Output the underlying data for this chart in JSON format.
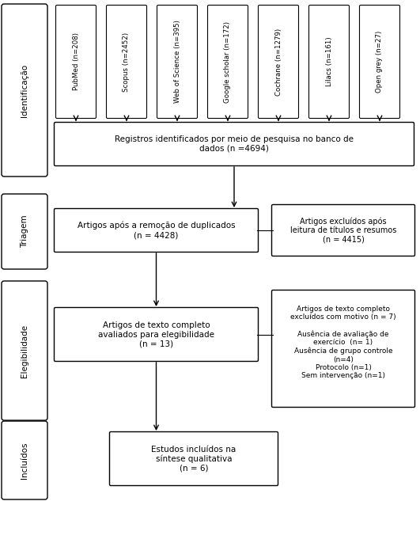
{
  "bg_color": "#ffffff",
  "fig_width": 5.31,
  "fig_height": 6.86,
  "dpi": 100,
  "databases": [
    {
      "label": "PubMed (n=208)"
    },
    {
      "label": "Scopus (n=2452)"
    },
    {
      "label": "Web of Science (n=395)"
    },
    {
      "label": "Google scholar (n=172)"
    },
    {
      "label": "Cochrane (n=1279)"
    },
    {
      "label": "Lilacs (n=161)"
    },
    {
      "label": "Open grey (n=27)"
    }
  ],
  "side_labels": [
    {
      "text": "Identificação"
    },
    {
      "text": "Triagem"
    },
    {
      "text": "Elegibilidade"
    },
    {
      "text": "Incluídos"
    }
  ],
  "box_texts": {
    "reg": "Registros identificados por meio de pesquisa no banco de\ndados (n =4694)",
    "dup": "Artigos após a remoção de duplicados\n(n = 4428)",
    "excl_titles": "Artigos excluídos após\nleitura de títulos e resumos\n(n = 4415)",
    "eligib": "Artigos de texto completo\navaliados para elegibilidade\n(n = 13)",
    "excl_full": "Artigos de texto completo\nexcluídos com motivo (n = 7)\n\nAusência de avaliação de\nexercício  (n= 1)\nAusência de grupo controle\n(n=4)\nProtocolo (n=1)\nSem intervenção (n=1)",
    "included": "Estudos incluídos na\nsíntese qualitativa\n(n = 6)"
  }
}
